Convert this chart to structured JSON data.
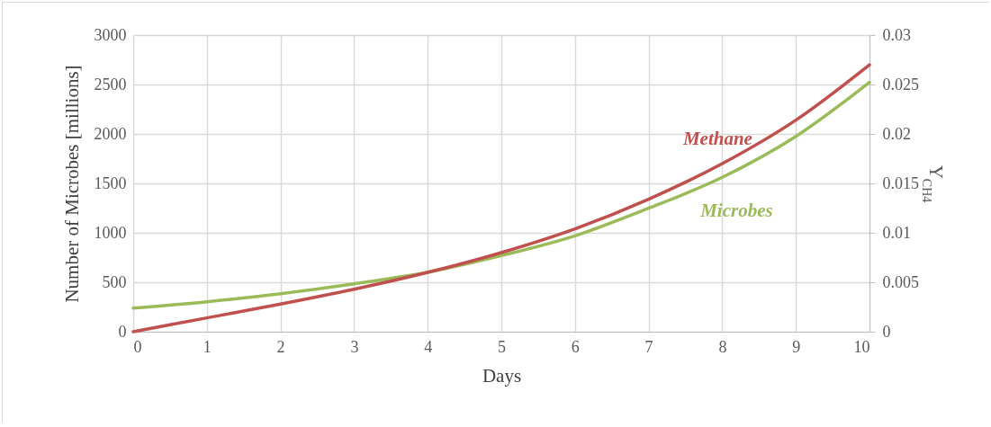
{
  "chart_data": {
    "type": "line",
    "xlabel": "Days",
    "ylabel": "Number of Microbes [millions]",
    "y2label": "Y$_{CH4}$",
    "x": [
      0,
      1,
      2,
      3,
      4,
      5,
      6,
      7,
      8,
      9,
      10
    ],
    "series": [
      {
        "name": "Microbes",
        "color": "#9bbb59",
        "values": [
          239,
          303,
          385,
          485,
          603,
          770,
          970,
          1248,
          1561,
          1975,
          2521
        ]
      },
      {
        "name": "Methane",
        "color": "#c0504d",
        "axis": "y2",
        "values": [
          0,
          0.0014,
          0.0028,
          0.0043,
          0.006,
          0.008,
          0.0104,
          0.0134,
          0.017,
          0.0214,
          0.027
        ]
      }
    ],
    "xlim": [
      0,
      10
    ],
    "xticks": [
      0,
      1,
      2,
      3,
      4,
      5,
      6,
      7,
      8,
      9,
      10
    ],
    "ylim": [
      0,
      3000
    ],
    "yticks": [
      0,
      500,
      1000,
      1500,
      2000,
      2500,
      3000
    ],
    "y2lim": [
      0,
      0.03
    ],
    "y2ticks": [
      0,
      0.005,
      0.01,
      0.015,
      0.02,
      0.025,
      0.03
    ],
    "grid": true,
    "marker": "none",
    "line_style": "solid"
  }
}
